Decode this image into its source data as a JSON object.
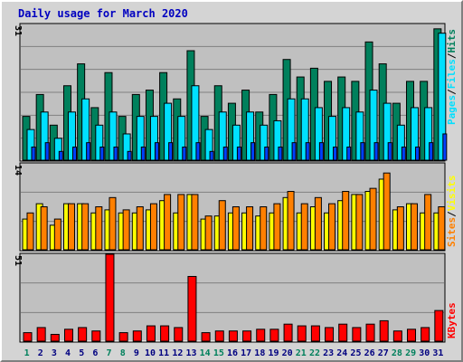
{
  "title": "Daily usage for March 2020",
  "colors": {
    "title": "#0000c0",
    "hits": "#00805c",
    "files": "#00e0ff",
    "pages": "#0040ff",
    "visits": "#ffff00",
    "sites": "#ff8000",
    "kbytes": "#ff0000",
    "weekday_label": "#000080",
    "weekend_label": "#00805c",
    "plot_bg": "#c0c0c0",
    "gridline": "#808080"
  },
  "chart_data": [
    {
      "type": "bar",
      "panel": "hits-files-pages",
      "ymax_label": "31",
      "ylim": [
        0,
        31
      ],
      "legend": {
        "hits": "Hits",
        "files": "Files",
        "pages": "Pages",
        "separator": "/"
      },
      "categories": [
        "1",
        "2",
        "3",
        "4",
        "5",
        "6",
        "7",
        "8",
        "9",
        "10",
        "11",
        "12",
        "13",
        "14",
        "15",
        "16",
        "17",
        "18",
        "19",
        "20",
        "21",
        "22",
        "23",
        "24",
        "25",
        "26",
        "27",
        "28",
        "29",
        "30",
        "31"
      ],
      "weekend": [
        1,
        7,
        8,
        14,
        15,
        21,
        22,
        28,
        29
      ],
      "series": [
        {
          "name": "Hits",
          "values": [
            10,
            15,
            8,
            17,
            22,
            12,
            20,
            10,
            15,
            16,
            20,
            14,
            25,
            10,
            17,
            13,
            16,
            11,
            15,
            23,
            19,
            21,
            18,
            19,
            18,
            27,
            22,
            13,
            18,
            18,
            30
          ]
        },
        {
          "name": "Files",
          "values": [
            7,
            11,
            5,
            11,
            14,
            8,
            11,
            6,
            10,
            10,
            13,
            10,
            17,
            7,
            11,
            8,
            11,
            8,
            9,
            14,
            14,
            12,
            10,
            12,
            11,
            16,
            13,
            8,
            12,
            12,
            29
          ]
        },
        {
          "name": "Pages",
          "values": [
            3,
            4,
            2,
            3,
            4,
            3,
            3,
            2,
            3,
            4,
            4,
            3,
            4,
            2,
            3,
            3,
            4,
            3,
            3,
            4,
            4,
            4,
            3,
            3,
            4,
            4,
            4,
            3,
            3,
            4,
            6
          ]
        }
      ]
    },
    {
      "type": "bar",
      "panel": "visits-sites",
      "ymax_label": "14",
      "ylim": [
        0,
        14
      ],
      "legend": {
        "visits": "Visits",
        "sites": "Sites",
        "separator": "/"
      },
      "categories": [
        "1",
        "2",
        "3",
        "4",
        "5",
        "6",
        "7",
        "8",
        "9",
        "10",
        "11",
        "12",
        "13",
        "14",
        "15",
        "16",
        "17",
        "18",
        "19",
        "20",
        "21",
        "22",
        "23",
        "24",
        "25",
        "26",
        "27",
        "28",
        "29",
        "30",
        "31"
      ],
      "series": [
        {
          "name": "Visits",
          "values": [
            5,
            7.5,
            4,
            7.5,
            7.5,
            6,
            6.5,
            6,
            6,
            6.5,
            8,
            6,
            9,
            5,
            5.5,
            6,
            6,
            5.5,
            6,
            8.5,
            6,
            7,
            6,
            8,
            9,
            9.5,
            11.5,
            6.5,
            7.5,
            6,
            6
          ]
        },
        {
          "name": "Sites",
          "values": [
            6,
            7,
            5,
            7.5,
            7.5,
            7,
            8.5,
            6.5,
            7,
            7.5,
            9,
            9,
            9,
            5.5,
            8,
            7,
            7,
            7,
            7.5,
            9.5,
            7.5,
            8.5,
            7.5,
            9.5,
            9,
            10,
            12.5,
            7,
            7.5,
            9,
            7
          ]
        }
      ]
    },
    {
      "type": "bar",
      "panel": "kbytes",
      "ymax_label": "51",
      "ylim": [
        0,
        51
      ],
      "legend": {
        "kbytes": "KBytes"
      },
      "categories": [
        "1",
        "2",
        "3",
        "4",
        "5",
        "6",
        "7",
        "8",
        "9",
        "10",
        "11",
        "12",
        "13",
        "14",
        "15",
        "16",
        "17",
        "18",
        "19",
        "20",
        "21",
        "22",
        "23",
        "24",
        "25",
        "26",
        "27",
        "28",
        "29",
        "30",
        "31"
      ],
      "series": [
        {
          "name": "KBytes",
          "values": [
            5,
            8,
            4,
            7,
            8,
            6,
            51,
            5,
            6,
            9,
            9,
            8,
            38,
            5,
            6,
            6,
            6,
            7,
            7,
            10,
            9,
            9,
            8,
            10,
            8,
            10,
            12,
            6,
            7,
            8,
            18
          ]
        }
      ]
    }
  ]
}
